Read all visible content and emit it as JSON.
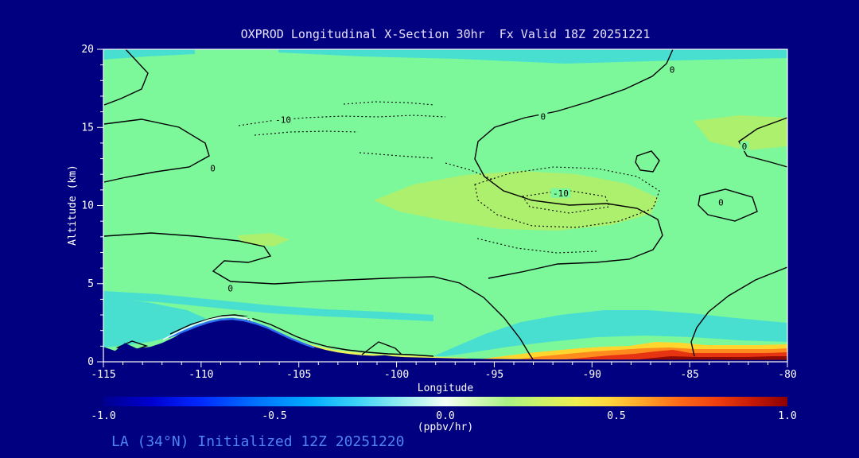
{
  "page": {
    "title": "OXPROD Longitudinal X-Section 30hr  Fx Valid 18Z 20251221",
    "footer": "LA (34°N) Initialized 12Z 20251220"
  },
  "colors": {
    "background": "#000080",
    "plot_base": "#7cf89b",
    "cyan_patch": "#49dfd0",
    "yellow_green": "#adf06d",
    "pale_yellow": "#eaf25c",
    "band_yellow": "#ffd62e",
    "band_orange": "#ff8a1e",
    "band_red": "#e63312",
    "band_dark_red": "#8f0a00",
    "rim_white": "#eef7ff",
    "rim_blue": "#2e6cf2",
    "contour": "#000000",
    "axis_text": "#ffffff",
    "title_text": "#e6e0fb",
    "footer_text": "#4f83f2"
  },
  "chart_data": {
    "type": "heatmap",
    "subtype": "filled-contour longitudinal cross-section",
    "title": "OXPROD Longitudinal X-Section 30hr  Fx Valid 18Z 20251221",
    "xlabel": "Longitude",
    "ylabel": "Altitude (km)",
    "xlim": [
      -115,
      -80
    ],
    "ylim": [
      0,
      20
    ],
    "x_ticks": [
      -115,
      -110,
      -105,
      -100,
      -95,
      -90,
      -85,
      -80
    ],
    "x_tick_labels": [
      "-115",
      "-110",
      "-105",
      "-100",
      "-95",
      "-90",
      "-85",
      "-80"
    ],
    "y_ticks": [
      0,
      5,
      10,
      15,
      20
    ],
    "y_tick_labels": [
      "0",
      "5",
      "10",
      "15",
      "20"
    ],
    "x_minor_step": 1,
    "y_minor_step": 1,
    "grid": false,
    "contour_line_levels": {
      "solid_label": "0",
      "dotted_label": "-10"
    },
    "contour_labels": [
      {
        "text": "0",
        "lon": -109.4,
        "alt": 12.4
      },
      {
        "text": "0",
        "lon": -108.5,
        "alt": 4.7
      },
      {
        "text": "0",
        "lon": -107.6,
        "alt": 2.6
      },
      {
        "text": "0",
        "lon": -92.5,
        "alt": 15.7
      },
      {
        "text": "0",
        "lon": -85.9,
        "alt": 18.7
      },
      {
        "text": "0",
        "lon": -83.4,
        "alt": 10.2
      },
      {
        "text": "0",
        "lon": -82.2,
        "alt": 13.8
      },
      {
        "text": "-10",
        "lon": -105.8,
        "alt": 15.5
      },
      {
        "text": "-10",
        "lon": -91.6,
        "alt": 10.8
      }
    ],
    "terrain_profile": [
      [
        -115,
        0.95
      ],
      [
        -114.4,
        0.7
      ],
      [
        -113.9,
        1.2
      ],
      [
        -113.3,
        0.85
      ],
      [
        -112.6,
        0.95
      ],
      [
        -112,
        1.2
      ],
      [
        -111.4,
        1.55
      ],
      [
        -110.8,
        2.0
      ],
      [
        -110.2,
        2.3
      ],
      [
        -109.6,
        2.55
      ],
      [
        -109,
        2.7
      ],
      [
        -108.4,
        2.75
      ],
      [
        -107.8,
        2.65
      ],
      [
        -107.2,
        2.45
      ],
      [
        -106.6,
        2.2
      ],
      [
        -106,
        1.85
      ],
      [
        -105.4,
        1.5
      ],
      [
        -104.8,
        1.2
      ],
      [
        -104.2,
        0.95
      ],
      [
        -103.6,
        0.75
      ],
      [
        -103,
        0.6
      ],
      [
        -102.4,
        0.5
      ],
      [
        -101.8,
        0.42
      ],
      [
        -101.2,
        0.38
      ],
      [
        -100.6,
        0.42
      ],
      [
        -100.2,
        0.35
      ],
      [
        -99.6,
        0.3
      ],
      [
        -99,
        0.28
      ],
      [
        -98,
        0.25
      ],
      [
        -97,
        0.22
      ],
      [
        -96,
        0.2
      ],
      [
        -95,
        0.18
      ],
      [
        -94,
        0.17
      ],
      [
        -93,
        0.16
      ],
      [
        -92,
        0.15
      ],
      [
        -91,
        0.16
      ],
      [
        -90,
        0.15
      ],
      [
        -89,
        0.14
      ],
      [
        -88,
        0.15
      ],
      [
        -87,
        0.14
      ],
      [
        -86,
        0.13
      ],
      [
        -85,
        0.14
      ],
      [
        -84,
        0.13
      ],
      [
        -83,
        0.12
      ],
      [
        -82,
        0.12
      ],
      [
        -81,
        0.12
      ],
      [
        -80,
        0.12
      ]
    ],
    "colorbar": {
      "units": "(ppbv/hr)",
      "min": -1.0,
      "max": 1.0,
      "ticks": [
        -1.0,
        -0.5,
        0.0,
        0.5,
        1.0
      ],
      "tick_labels": [
        "-1.0",
        "-0.5",
        "0.0",
        "0.5",
        "1.0"
      ],
      "gradient": [
        {
          "offset": 0.0,
          "color": "#000090"
        },
        {
          "offset": 0.07,
          "color": "#0000d0"
        },
        {
          "offset": 0.14,
          "color": "#0028ff"
        },
        {
          "offset": 0.22,
          "color": "#0070ff"
        },
        {
          "offset": 0.3,
          "color": "#00aaff"
        },
        {
          "offset": 0.37,
          "color": "#3cd2f8"
        },
        {
          "offset": 0.43,
          "color": "#8ceaf0"
        },
        {
          "offset": 0.48,
          "color": "#d4faf2"
        },
        {
          "offset": 0.5,
          "color": "#f4fff6"
        },
        {
          "offset": 0.54,
          "color": "#d6fabe"
        },
        {
          "offset": 0.59,
          "color": "#aaf284"
        },
        {
          "offset": 0.64,
          "color": "#ccf468"
        },
        {
          "offset": 0.69,
          "color": "#f0ee52"
        },
        {
          "offset": 0.74,
          "color": "#ffd63c"
        },
        {
          "offset": 0.79,
          "color": "#ffa428"
        },
        {
          "offset": 0.84,
          "color": "#ff6c18"
        },
        {
          "offset": 0.9,
          "color": "#ee3c0e"
        },
        {
          "offset": 0.95,
          "color": "#c41806"
        },
        {
          "offset": 1.0,
          "color": "#8c0000"
        }
      ]
    }
  }
}
